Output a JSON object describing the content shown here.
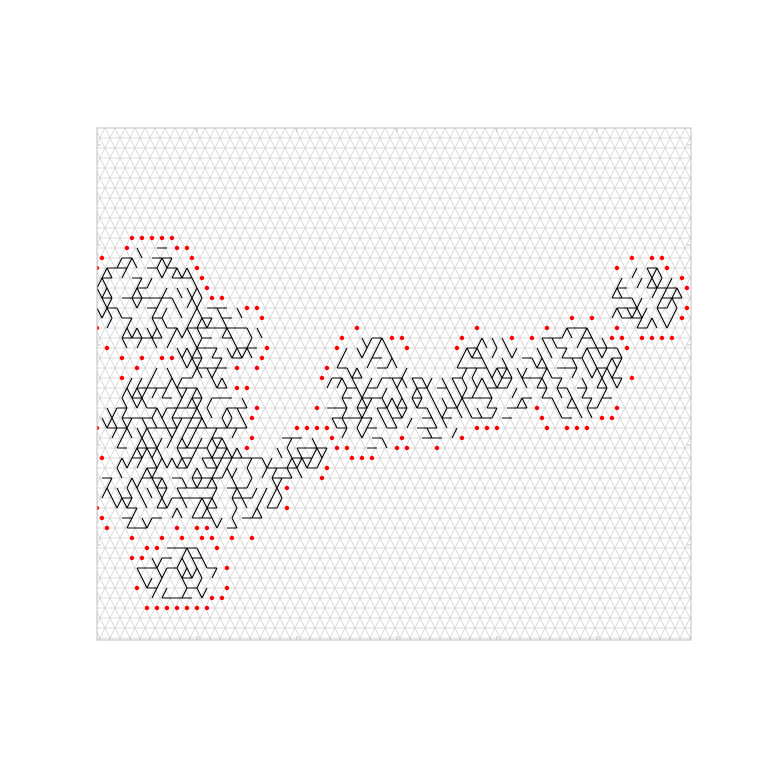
{
  "figure": {
    "title": "",
    "colors": {
      "background": "#ffffff",
      "grid": "#d3d3d3",
      "frame": "#bfbfbf",
      "path": "#000000",
      "dots": "#ff0000"
    },
    "icons": [
      "triangular-lattice",
      "black-walk-path",
      "red-site-dots"
    ]
  }
}
